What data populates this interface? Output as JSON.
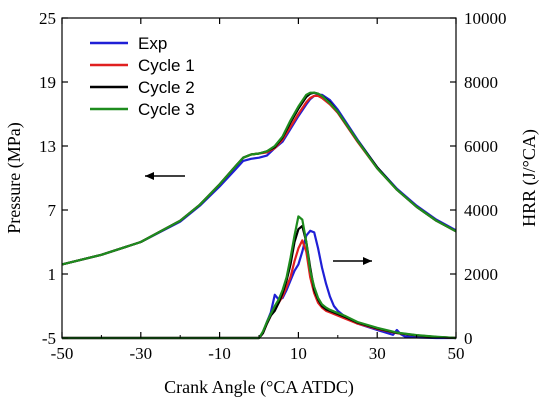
{
  "chart_data": {
    "type": "line",
    "xlabel": "Crank Angle (°CA ATDC)",
    "ylabel_left": "Pressure (MPa)",
    "ylabel_right": "HRR (J/°CA)",
    "xlim": [
      -50,
      50
    ],
    "ylim_left": [
      -5,
      25
    ],
    "ylim_right": [
      0,
      10000
    ],
    "xticks": [
      -50,
      -30,
      -10,
      10,
      30,
      50
    ],
    "yticks_left": [
      -5,
      1,
      7,
      13,
      19,
      25
    ],
    "yticks_right": [
      0,
      2000,
      4000,
      6000,
      8000,
      10000
    ],
    "grid": false,
    "legend_position": "top-left",
    "annotations": [
      {
        "type": "arrow",
        "direction": "left",
        "meaning": "Pressure curves refer to left axis"
      },
      {
        "type": "arrow",
        "direction": "right",
        "meaning": "HRR curves refer to right axis"
      }
    ],
    "pressure_series": [
      {
        "name": "Exp",
        "color": "#1f1fd6",
        "x": [
          -50,
          -40,
          -30,
          -20,
          -15,
          -10,
          -6,
          -4,
          -2,
          0,
          2,
          4,
          6,
          8,
          10,
          12,
          13,
          14,
          15,
          16,
          18,
          20,
          25,
          30,
          35,
          40,
          45,
          50
        ],
        "y": [
          1.9,
          2.8,
          4.0,
          5.9,
          7.4,
          9.2,
          10.8,
          11.6,
          11.8,
          11.9,
          12.1,
          12.8,
          13.4,
          14.6,
          15.8,
          16.9,
          17.4,
          17.7,
          17.8,
          17.8,
          17.3,
          16.4,
          13.6,
          11.0,
          9.0,
          7.4,
          6.1,
          5.1
        ]
      },
      {
        "name": "Cycle 1",
        "color": "#e02020",
        "x": [
          -50,
          -40,
          -30,
          -20,
          -15,
          -10,
          -6,
          -4,
          -2,
          0,
          2,
          4,
          6,
          8,
          10,
          12,
          13,
          14,
          15,
          16,
          18,
          20,
          25,
          30,
          35,
          40,
          45,
          50
        ],
        "y": [
          1.9,
          2.8,
          4.0,
          6.0,
          7.5,
          9.4,
          11.1,
          11.9,
          12.2,
          12.3,
          12.4,
          12.8,
          13.6,
          14.8,
          16.0,
          17.1,
          17.5,
          17.7,
          17.7,
          17.5,
          16.9,
          16.1,
          13.4,
          10.9,
          8.9,
          7.3,
          6.0,
          5.0
        ]
      },
      {
        "name": "Cycle 2",
        "color": "#000000",
        "x": [
          -50,
          -40,
          -30,
          -20,
          -15,
          -10,
          -6,
          -4,
          -2,
          0,
          2,
          4,
          6,
          8,
          10,
          12,
          13,
          14,
          15,
          16,
          18,
          20,
          25,
          30,
          35,
          40,
          45,
          50
        ],
        "y": [
          1.9,
          2.8,
          4.0,
          6.0,
          7.5,
          9.4,
          11.1,
          11.9,
          12.2,
          12.3,
          12.5,
          12.9,
          13.8,
          15.2,
          16.5,
          17.6,
          17.9,
          18.0,
          17.9,
          17.7,
          17.1,
          16.2,
          13.5,
          11.0,
          8.9,
          7.3,
          6.0,
          5.0
        ]
      },
      {
        "name": "Cycle 3",
        "color": "#1e8c1e",
        "x": [
          -50,
          -40,
          -30,
          -20,
          -15,
          -10,
          -6,
          -4,
          -2,
          0,
          2,
          4,
          6,
          8,
          10,
          12,
          13,
          14,
          15,
          16,
          18,
          20,
          25,
          30,
          35,
          40,
          45,
          50
        ],
        "y": [
          1.9,
          2.8,
          4.0,
          6.0,
          7.5,
          9.4,
          11.1,
          11.9,
          12.2,
          12.3,
          12.5,
          13.0,
          13.9,
          15.4,
          16.7,
          17.8,
          18.0,
          18.0,
          17.9,
          17.7,
          17.0,
          16.2,
          13.5,
          10.9,
          8.9,
          7.3,
          6.0,
          5.0
        ]
      }
    ],
    "hrr_series": [
      {
        "name": "Exp",
        "color": "#1f1fd6",
        "x": [
          -50,
          -10,
          0,
          1,
          2,
          3,
          4,
          5,
          6,
          7,
          8,
          9,
          10,
          11,
          12,
          13,
          14,
          15,
          16,
          17,
          18,
          19,
          20,
          22,
          25,
          30,
          34,
          35,
          36,
          37,
          40,
          45,
          50
        ],
        "y": [
          0,
          0,
          0,
          150,
          500,
          800,
          1350,
          1200,
          1250,
          1500,
          1800,
          2100,
          2300,
          2700,
          3200,
          3350,
          3300,
          2800,
          2200,
          1700,
          1300,
          1000,
          850,
          650,
          450,
          250,
          100,
          250,
          120,
          50,
          20,
          0,
          0
        ]
      },
      {
        "name": "Cycle 1",
        "color": "#e02020",
        "x": [
          -50,
          -10,
          0,
          1,
          2,
          3,
          4,
          5,
          6,
          7,
          8,
          9,
          10,
          11,
          12,
          13,
          14,
          15,
          16,
          17,
          18,
          20,
          22,
          25,
          30,
          35,
          40,
          45,
          50
        ],
        "y": [
          0,
          0,
          0,
          150,
          450,
          700,
          900,
          1100,
          1300,
          1600,
          1900,
          2400,
          2800,
          3050,
          2700,
          1900,
          1400,
          1100,
          950,
          850,
          800,
          700,
          600,
          450,
          280,
          150,
          80,
          30,
          0
        ]
      },
      {
        "name": "Cycle 2",
        "color": "#000000",
        "x": [
          -50,
          -10,
          0,
          1,
          2,
          3,
          4,
          5,
          6,
          7,
          8,
          9,
          10,
          11,
          12,
          13,
          14,
          15,
          16,
          17,
          18,
          20,
          22,
          25,
          30,
          35,
          40,
          45,
          50
        ],
        "y": [
          0,
          0,
          0,
          150,
          450,
          700,
          850,
          1100,
          1400,
          1800,
          2300,
          3000,
          3400,
          3500,
          3000,
          2200,
          1500,
          1200,
          1000,
          900,
          850,
          750,
          650,
          480,
          300,
          160,
          80,
          30,
          0
        ]
      },
      {
        "name": "Cycle 3",
        "color": "#1e8c1e",
        "x": [
          -50,
          -10,
          0,
          1,
          2,
          3,
          4,
          5,
          6,
          7,
          8,
          9,
          10,
          11,
          12,
          13,
          14,
          15,
          16,
          17,
          18,
          20,
          22,
          25,
          30,
          35,
          40,
          45,
          50
        ],
        "y": [
          0,
          0,
          0,
          200,
          500,
          750,
          1000,
          1200,
          1500,
          1900,
          2500,
          3200,
          3800,
          3700,
          3000,
          2100,
          1600,
          1250,
          1050,
          950,
          880,
          780,
          680,
          500,
          320,
          170,
          90,
          40,
          0
        ]
      }
    ]
  }
}
